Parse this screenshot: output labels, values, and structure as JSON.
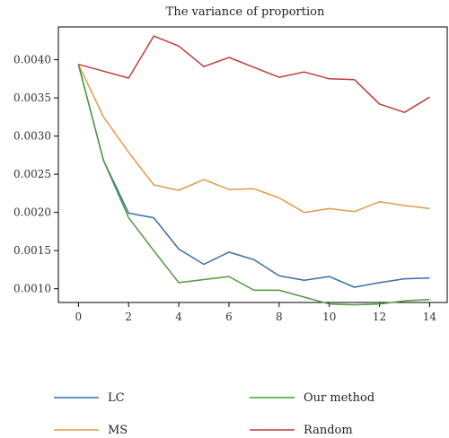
{
  "chart_data": {
    "type": "line",
    "title": "The variance of proportion",
    "xlabel": "",
    "ylabel": "",
    "xlim": [
      -0.8,
      14.7
    ],
    "ylim": [
      0.00082,
      0.00443
    ],
    "xticks": [
      0,
      2,
      4,
      6,
      8,
      10,
      12,
      14
    ],
    "yticks": [
      0.001,
      0.0015,
      0.002,
      0.0025,
      0.003,
      0.0035,
      0.004
    ],
    "ytick_labels": [
      "0.0010",
      "0.0015",
      "0.0020",
      "0.0025",
      "0.0030",
      "0.0035",
      "0.0040"
    ],
    "grid": false,
    "legend_position": "bottom",
    "x": [
      0,
      1,
      2,
      3,
      4,
      5,
      6,
      7,
      8,
      9,
      10,
      11,
      12,
      13,
      14
    ],
    "series": [
      {
        "name": "LC",
        "color": "#3a6fa8",
        "values": [
          0.00394,
          0.00268,
          0.00199,
          0.00193,
          0.00152,
          0.00132,
          0.00148,
          0.00138,
          0.00117,
          0.00111,
          0.00116,
          0.00102,
          0.00108,
          0.00113,
          0.00114
        ]
      },
      {
        "name": "MS",
        "color": "#e09a4a",
        "values": [
          0.00394,
          0.00325,
          0.00279,
          0.00236,
          0.00229,
          0.00243,
          0.0023,
          0.00231,
          0.00219,
          0.002,
          0.00205,
          0.00201,
          0.00214,
          0.00209,
          0.00205
        ]
      },
      {
        "name": "Our method",
        "color": "#4f9a3f",
        "values": [
          0.00394,
          0.00268,
          0.00193,
          0.0015,
          0.00108,
          0.00112,
          0.00116,
          0.00098,
          0.00098,
          0.00089,
          0.0008,
          0.00079,
          0.0008,
          0.00084,
          0.00086
        ]
      },
      {
        "name": "Random",
        "color": "#c03a3a",
        "values": [
          0.00394,
          0.00385,
          0.00376,
          0.00431,
          0.00418,
          0.00391,
          0.00403,
          0.0039,
          0.00377,
          0.00384,
          0.00375,
          0.00374,
          0.00342,
          0.00331,
          0.00351
        ]
      }
    ]
  }
}
